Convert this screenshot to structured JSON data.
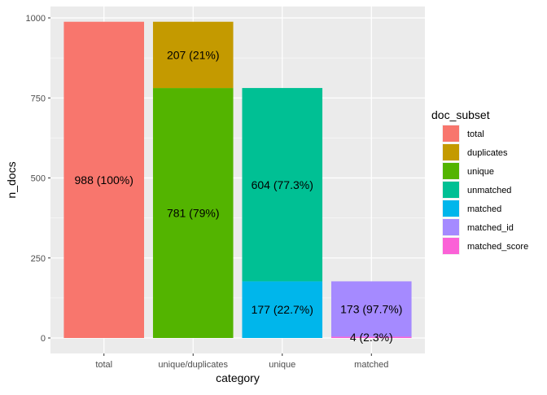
{
  "chart_data": {
    "type": "bar",
    "stacked": true,
    "xlabel": "category",
    "ylabel": "n_docs",
    "ylim": [
      0,
      1000
    ],
    "yticks": [
      0,
      250,
      500,
      750,
      1000
    ],
    "grid": true,
    "categories": [
      "total",
      "unique/duplicates",
      "unique",
      "matched"
    ],
    "segments": [
      {
        "category": "total",
        "subset": "total",
        "value": 988,
        "label": "988 (100%)"
      },
      {
        "category": "unique/duplicates",
        "subset": "unique",
        "value": 781,
        "label": "781 (79%)"
      },
      {
        "category": "unique/duplicates",
        "subset": "duplicates",
        "value": 207,
        "label": "207 (21%)"
      },
      {
        "category": "unique",
        "subset": "matched",
        "value": 177,
        "label": "177 (22.7%)"
      },
      {
        "category": "unique",
        "subset": "unmatched",
        "value": 604,
        "label": "604 (77.3%)"
      },
      {
        "category": "matched",
        "subset": "matched_score",
        "value": 4,
        "label": "4 (2.3%)"
      },
      {
        "category": "matched",
        "subset": "matched_id",
        "value": 173,
        "label": "173 (97.7%)"
      }
    ],
    "legend": {
      "title": "doc_subset",
      "position": "right",
      "entries": [
        {
          "name": "total",
          "color": "#F8766D"
        },
        {
          "name": "duplicates",
          "color": "#C49A00"
        },
        {
          "name": "unique",
          "color": "#53B400"
        },
        {
          "name": "unmatched",
          "color": "#00C094"
        },
        {
          "name": "matched",
          "color": "#00B6EB"
        },
        {
          "name": "matched_id",
          "color": "#A58AFF"
        },
        {
          "name": "matched_score",
          "color": "#FB61D7"
        }
      ]
    }
  }
}
